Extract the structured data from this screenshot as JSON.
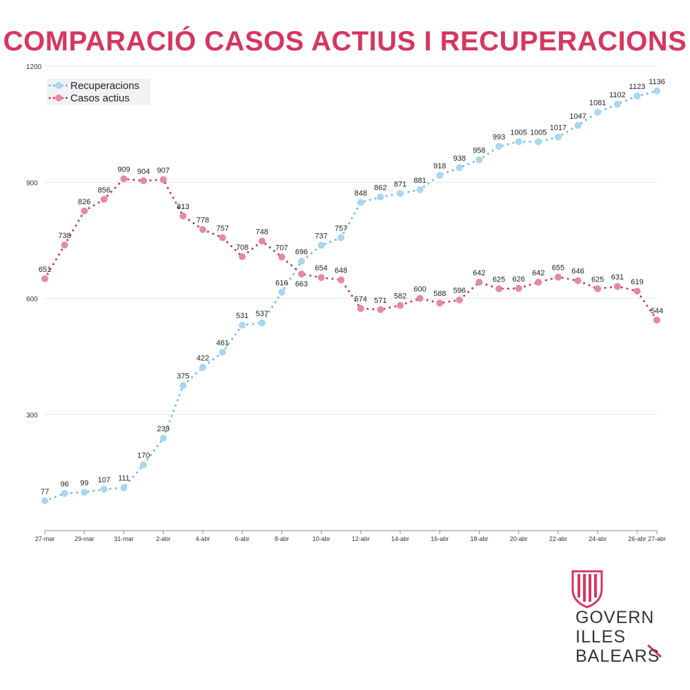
{
  "colors": {
    "title": "#d6365f",
    "recuperacions": "#a9d6f0",
    "recuperacions_dots": "#74b9e0",
    "casos_actius": "#e48aa3",
    "casos_actius_dots": "#c73761",
    "grid": "#e6e6e6",
    "axis": "#888888"
  },
  "chart_data": {
    "type": "line",
    "title": "COMPARACIÓ CASOS ACTIUS I RECUPERACIONS",
    "x": [
      "27-mar",
      "28-mar",
      "29-mar",
      "30-mar",
      "31-mar",
      "1-abr",
      "2-abr",
      "3-abr",
      "4-abr",
      "5-abr",
      "6-abr",
      "7-abr",
      "8-abr",
      "9-abr",
      "10-abr",
      "11-abr",
      "12-abr",
      "13-abr",
      "14-abr",
      "15-abr",
      "16-abr",
      "17-abr",
      "18-abr",
      "19-abr",
      "20-abr",
      "21-abr",
      "22-abr",
      "23-abr",
      "24-abr",
      "25-abr",
      "26-abr",
      "27-abr"
    ],
    "x_tick_labels": [
      "27-mar",
      "29-mar",
      "31-mar",
      "2-abr",
      "4-abr",
      "6-abr",
      "8-abr",
      "10-abr",
      "12-abr",
      "14-abr",
      "16-abr",
      "18-abr",
      "20-abr",
      "22-abr",
      "24-abr",
      "26-abr",
      "27-abr"
    ],
    "yticks": [
      300,
      600,
      900,
      1200
    ],
    "ylim": [
      0,
      1200
    ],
    "grid": true,
    "legend_position": "top-left",
    "series": [
      {
        "name": "Recuperacions",
        "values": [
          77,
          96,
          99,
          107,
          111,
          170,
          239,
          375,
          422,
          461,
          531,
          537,
          616,
          696,
          737,
          757,
          848,
          862,
          871,
          881,
          918,
          938,
          958,
          993,
          1005,
          1005,
          1017,
          1047,
          1081,
          1102,
          1123,
          1136
        ]
      },
      {
        "name": "Casos actius",
        "values": [
          651,
          738,
          826,
          856,
          909,
          904,
          907,
          813,
          778,
          757,
          708,
          748,
          707,
          663,
          654,
          648,
          574,
          571,
          582,
          600,
          588,
          596,
          642,
          625,
          626,
          642,
          655,
          646,
          625,
          631,
          619,
          544
        ]
      }
    ]
  },
  "logo": {
    "icon": "balearic-coat-of-arms-icon",
    "line1": "GOVERN",
    "line2": "ILLES",
    "line3": "BALEARS"
  }
}
